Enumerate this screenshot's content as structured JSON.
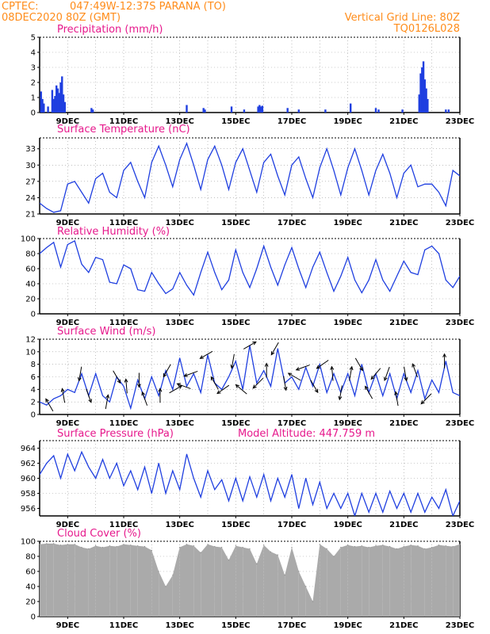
{
  "header": {
    "source": "CPTEC:",
    "location": "047:49W-12:37S  PARANA (TO)",
    "run": "08DEC2020 80Z (GMT)",
    "grid_note": "Vertical Grid Line: 80Z",
    "model_code": "TQ0126L028"
  },
  "colors": {
    "header": "#ff8c1a",
    "title": "#e6198c",
    "series": "#1f3fe0",
    "cloud": "#aaaaaa"
  },
  "chart_data": [
    {
      "id": "precip",
      "type": "bar",
      "title": "Precipitation (mm/h)",
      "ylim": [
        0,
        5
      ],
      "yticks": [
        "0",
        "1",
        "2",
        "3",
        "4",
        "5"
      ],
      "xticks": [
        "9DEC",
        "11DEC",
        "13DEC",
        "15DEC",
        "17DEC",
        "19DEC",
        "21DEC",
        "23DEC"
      ],
      "x_start_day": 8.0,
      "x_end_day": 23.0,
      "step_hours": 3,
      "bars": [
        [
          8.05,
          1.4
        ],
        [
          8.1,
          0.9
        ],
        [
          8.15,
          0.6
        ],
        [
          8.3,
          0.4
        ],
        [
          8.45,
          1.5
        ],
        [
          8.5,
          0.9
        ],
        [
          8.55,
          1.1
        ],
        [
          8.6,
          1.8
        ],
        [
          8.65,
          1.6
        ],
        [
          8.7,
          1.3
        ],
        [
          8.75,
          2.0
        ],
        [
          8.8,
          2.4
        ],
        [
          8.85,
          1.2
        ],
        [
          8.9,
          0.7
        ],
        [
          9.85,
          0.3
        ],
        [
          9.9,
          0.2
        ],
        [
          13.25,
          0.5
        ],
        [
          13.85,
          0.3
        ],
        [
          13.9,
          0.2
        ],
        [
          14.85,
          0.4
        ],
        [
          15.3,
          0.2
        ],
        [
          15.8,
          0.4
        ],
        [
          15.85,
          0.5
        ],
        [
          15.9,
          0.4
        ],
        [
          15.95,
          0.45
        ],
        [
          16.85,
          0.3
        ],
        [
          17.25,
          0.2
        ],
        [
          18.2,
          0.2
        ],
        [
          19.1,
          0.6
        ],
        [
          20.0,
          0.3
        ],
        [
          20.1,
          0.2
        ],
        [
          20.95,
          0.2
        ],
        [
          21.55,
          1.2
        ],
        [
          21.6,
          2.6
        ],
        [
          21.65,
          3.0
        ],
        [
          21.7,
          3.4
        ],
        [
          21.75,
          2.2
        ],
        [
          21.8,
          1.6
        ],
        [
          21.85,
          0.9
        ],
        [
          22.5,
          0.2
        ],
        [
          22.6,
          0.2
        ]
      ]
    },
    {
      "id": "temp",
      "type": "line",
      "title": "Surface Temperature (nC)",
      "ylim": [
        21,
        35
      ],
      "yticks": [
        "21",
        "24",
        "27",
        "30",
        "33"
      ],
      "xticks": [
        "9DEC",
        "11DEC",
        "13DEC",
        "15DEC",
        "17DEC",
        "19DEC",
        "21DEC",
        "23DEC"
      ],
      "x": [
        8.0,
        8.25,
        8.5,
        8.75,
        9.0,
        9.25,
        9.5,
        9.75,
        10.0,
        10.25,
        10.5,
        10.75,
        11.0,
        11.25,
        11.5,
        11.75,
        12.0,
        12.25,
        12.5,
        12.75,
        13.0,
        13.25,
        13.5,
        13.75,
        14.0,
        14.25,
        14.5,
        14.75,
        15.0,
        15.25,
        15.5,
        15.75,
        16.0,
        16.25,
        16.5,
        16.75,
        17.0,
        17.25,
        17.5,
        17.75,
        18.0,
        18.25,
        18.5,
        18.75,
        19.0,
        19.25,
        19.5,
        19.75,
        20.0,
        20.25,
        20.5,
        20.75,
        21.0,
        21.25,
        21.5,
        21.75,
        22.0,
        22.25,
        22.5,
        22.75,
        23.0
      ],
      "values": [
        23.0,
        22.0,
        21.3,
        21.6,
        26.5,
        27.0,
        25.0,
        23.0,
        27.5,
        28.5,
        25.0,
        24.0,
        29.0,
        30.5,
        27.0,
        24.0,
        30.5,
        33.5,
        30.0,
        26.0,
        31.0,
        34.0,
        30.0,
        25.5,
        31.0,
        33.5,
        30.0,
        25.5,
        30.5,
        33.0,
        29.0,
        25.0,
        30.5,
        32.0,
        28.0,
        24.5,
        30.0,
        31.5,
        27.5,
        24.0,
        29.5,
        33.0,
        29.0,
        24.5,
        29.5,
        33.0,
        29.0,
        24.5,
        29.0,
        32.0,
        28.5,
        24.0,
        28.5,
        30.0,
        26.0,
        26.5,
        26.5,
        25.0,
        22.5,
        29.0,
        28.0
      ]
    },
    {
      "id": "rh",
      "type": "line",
      "title": "Relative Humidity (%)",
      "ylim": [
        0,
        100
      ],
      "yticks": [
        "0",
        "20",
        "40",
        "60",
        "80",
        "100"
      ],
      "xticks": [
        "9DEC",
        "11DEC",
        "13DEC",
        "15DEC",
        "17DEC",
        "19DEC",
        "21DEC",
        "23DEC"
      ],
      "x": [
        8.0,
        8.25,
        8.5,
        8.75,
        9.0,
        9.25,
        9.5,
        9.75,
        10.0,
        10.25,
        10.5,
        10.75,
        11.0,
        11.25,
        11.5,
        11.75,
        12.0,
        12.25,
        12.5,
        12.75,
        13.0,
        13.25,
        13.5,
        13.75,
        14.0,
        14.25,
        14.5,
        14.75,
        15.0,
        15.25,
        15.5,
        15.75,
        16.0,
        16.25,
        16.5,
        16.75,
        17.0,
        17.25,
        17.5,
        17.75,
        18.0,
        18.25,
        18.5,
        18.75,
        19.0,
        19.25,
        19.5,
        19.75,
        20.0,
        20.25,
        20.5,
        20.75,
        21.0,
        21.25,
        21.5,
        21.75,
        22.0,
        22.25,
        22.5,
        22.75,
        23.0
      ],
      "values": [
        80,
        88,
        95,
        62,
        92,
        97,
        66,
        55,
        75,
        72,
        42,
        40,
        65,
        60,
        32,
        30,
        55,
        40,
        27,
        33,
        55,
        38,
        25,
        55,
        82,
        55,
        32,
        45,
        85,
        55,
        35,
        60,
        90,
        62,
        38,
        65,
        88,
        60,
        35,
        62,
        82,
        55,
        30,
        50,
        75,
        45,
        28,
        45,
        72,
        45,
        30,
        50,
        70,
        55,
        52,
        85,
        90,
        80,
        45,
        35,
        50
      ]
    },
    {
      "id": "wind",
      "type": "line",
      "title": "Surface Wind (m/s)",
      "ylim": [
        0,
        12
      ],
      "yticks": [
        "0",
        "2",
        "4",
        "6",
        "8",
        "10",
        "12"
      ],
      "xticks": [
        "9DEC",
        "11DEC",
        "13DEC",
        "15DEC",
        "17DEC",
        "19DEC",
        "21DEC",
        "23DEC"
      ],
      "x": [
        8.0,
        8.25,
        8.5,
        8.75,
        9.0,
        9.25,
        9.5,
        9.75,
        10.0,
        10.25,
        10.5,
        10.75,
        11.0,
        11.25,
        11.5,
        11.75,
        12.0,
        12.25,
        12.5,
        12.75,
        13.0,
        13.25,
        13.5,
        13.75,
        14.0,
        14.25,
        14.5,
        14.75,
        15.0,
        15.25,
        15.5,
        15.75,
        16.0,
        16.25,
        16.5,
        16.75,
        17.0,
        17.25,
        17.5,
        17.75,
        18.0,
        18.25,
        18.5,
        18.75,
        19.0,
        19.25,
        19.5,
        19.75,
        20.0,
        20.25,
        20.5,
        20.75,
        21.0,
        21.25,
        21.5,
        21.75,
        22.0,
        22.25,
        22.5,
        22.75,
        23.0
      ],
      "values": [
        2.0,
        1.5,
        2.5,
        3.0,
        4.0,
        3.5,
        6.5,
        3.0,
        6.5,
        3.0,
        2.0,
        6.0,
        4.5,
        1.0,
        5.5,
        2.5,
        6.0,
        3.0,
        7.0,
        4.0,
        9.0,
        4.5,
        6.5,
        3.5,
        9.5,
        5.0,
        4.0,
        6.0,
        8.5,
        4.0,
        11.0,
        5.0,
        7.0,
        4.5,
        10.5,
        5.0,
        6.0,
        4.0,
        7.5,
        4.5,
        8.0,
        3.5,
        6.5,
        3.5,
        6.5,
        3.0,
        8.0,
        3.5,
        6.5,
        3.0,
        6.5,
        2.5,
        6.5,
        3.5,
        7.0,
        2.5,
        5.5,
        3.5,
        8.5,
        3.5,
        3.0
      ],
      "arrows": [
        [
          8.35,
          120
        ],
        [
          8.85,
          100
        ],
        [
          9.45,
          260
        ],
        [
          9.75,
          290
        ],
        [
          10.4,
          80
        ],
        [
          10.75,
          300
        ],
        [
          11.1,
          95
        ],
        [
          11.55,
          270
        ],
        [
          11.75,
          110
        ],
        [
          12.3,
          90
        ],
        [
          12.55,
          240
        ],
        [
          12.85,
          30
        ],
        [
          13.15,
          160
        ],
        [
          13.4,
          200
        ],
        [
          13.95,
          210
        ],
        [
          14.25,
          120
        ],
        [
          14.55,
          215
        ],
        [
          14.9,
          260
        ],
        [
          15.2,
          140
        ],
        [
          15.5,
          30
        ],
        [
          15.8,
          225
        ],
        [
          16.1,
          90
        ],
        [
          16.4,
          240
        ],
        [
          16.75,
          280
        ],
        [
          17.1,
          150
        ],
        [
          17.4,
          200
        ],
        [
          17.8,
          300
        ],
        [
          18.1,
          215
        ],
        [
          18.45,
          95
        ],
        [
          18.75,
          260
        ],
        [
          19.1,
          80
        ],
        [
          19.4,
          300
        ],
        [
          19.75,
          120
        ],
        [
          20.0,
          230
        ],
        [
          20.4,
          250
        ],
        [
          20.75,
          100
        ],
        [
          21.05,
          280
        ],
        [
          21.4,
          110
        ],
        [
          21.8,
          225
        ],
        [
          22.45,
          90
        ]
      ]
    },
    {
      "id": "pressure",
      "type": "line",
      "title": "Surface Pressure (hPa)",
      "annotation": "Model Altitude: 447.759 m",
      "ylim": [
        955,
        965
      ],
      "yticks": [
        "956",
        "958",
        "960",
        "962",
        "964"
      ],
      "xticks": [
        "9DEC",
        "11DEC",
        "13DEC",
        "15DEC",
        "17DEC",
        "19DEC",
        "21DEC",
        "23DEC"
      ],
      "x": [
        8.0,
        8.25,
        8.5,
        8.75,
        9.0,
        9.25,
        9.5,
        9.75,
        10.0,
        10.25,
        10.5,
        10.75,
        11.0,
        11.25,
        11.5,
        11.75,
        12.0,
        12.25,
        12.5,
        12.75,
        13.0,
        13.25,
        13.5,
        13.75,
        14.0,
        14.25,
        14.5,
        14.75,
        15.0,
        15.25,
        15.5,
        15.75,
        16.0,
        16.25,
        16.5,
        16.75,
        17.0,
        17.25,
        17.5,
        17.75,
        18.0,
        18.25,
        18.5,
        18.75,
        19.0,
        19.25,
        19.5,
        19.75,
        20.0,
        20.25,
        20.5,
        20.75,
        21.0,
        21.25,
        21.5,
        21.75,
        22.0,
        22.25,
        22.5,
        22.75,
        23.0
      ],
      "values": [
        960.5,
        962.0,
        963.0,
        960.0,
        963.2,
        961.0,
        963.5,
        961.5,
        960.0,
        962.5,
        960.0,
        962.0,
        959.0,
        961.0,
        958.5,
        961.5,
        958.0,
        962.0,
        958.0,
        961.0,
        958.5,
        963.2,
        960.0,
        957.5,
        961.0,
        958.5,
        959.8,
        957.0,
        960.0,
        957.0,
        960.2,
        957.5,
        960.5,
        957.0,
        960.0,
        957.5,
        960.5,
        956.0,
        960.0,
        956.5,
        959.5,
        956.0,
        958.0,
        956.0,
        958.0,
        955.0,
        958.0,
        955.5,
        958.0,
        955.5,
        958.3,
        956.0,
        958.0,
        955.5,
        958.0,
        955.5,
        957.5,
        956.0,
        958.5,
        955.0,
        957.0
      ]
    },
    {
      "id": "cloud",
      "type": "area",
      "title": "Cloud Cover (%)",
      "ylim": [
        0,
        100
      ],
      "yticks": [
        "0",
        "20",
        "40",
        "60",
        "80",
        "100"
      ],
      "xticks": [
        "9DEC",
        "11DEC",
        "13DEC",
        "15DEC",
        "17DEC",
        "19DEC",
        "21DEC",
        "23DEC"
      ],
      "x": [
        8.0,
        8.25,
        8.5,
        8.75,
        9.0,
        9.25,
        9.5,
        9.75,
        10.0,
        10.25,
        10.5,
        10.75,
        11.0,
        11.25,
        11.5,
        11.75,
        12.0,
        12.25,
        12.5,
        12.75,
        13.0,
        13.25,
        13.5,
        13.75,
        14.0,
        14.25,
        14.5,
        14.75,
        15.0,
        15.25,
        15.5,
        15.75,
        16.0,
        16.25,
        16.5,
        16.75,
        17.0,
        17.25,
        17.5,
        17.75,
        18.0,
        18.25,
        18.5,
        18.75,
        19.0,
        19.25,
        19.5,
        19.75,
        20.0,
        20.25,
        20.5,
        20.75,
        21.0,
        21.25,
        21.5,
        21.75,
        22.0,
        22.25,
        22.5,
        22.75,
        23.0
      ],
      "values": [
        96,
        97,
        97,
        95,
        96,
        96,
        92,
        90,
        94,
        92,
        94,
        93,
        96,
        95,
        94,
        93,
        88,
        60,
        40,
        55,
        92,
        96,
        94,
        85,
        96,
        93,
        92,
        75,
        94,
        92,
        90,
        70,
        95,
        86,
        82,
        55,
        92,
        60,
        40,
        20,
        96,
        90,
        80,
        92,
        95,
        93,
        94,
        92,
        94,
        95,
        93,
        90,
        93,
        95,
        94,
        90,
        92,
        95,
        94,
        93,
        96
      ]
    }
  ]
}
